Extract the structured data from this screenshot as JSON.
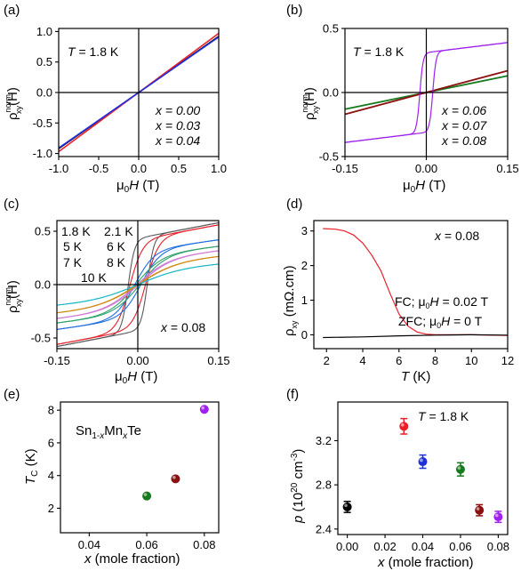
{
  "panel_labels": [
    "(a)",
    "(b)",
    "(c)",
    "(d)",
    "(e)",
    "(f)"
  ],
  "colors": {
    "x000": "#000000",
    "x003": "#e8202a",
    "x004": "#1f2fe0",
    "x006": "#167a1e",
    "x007": "#8b0f0f",
    "x008": "#a020f0",
    "k18": "#5a5a5a",
    "k21": "#e8202a",
    "k5": "#1f6fe0",
    "k6": "#2ea36b",
    "k7": "#d07ad8",
    "k8": "#d08a12",
    "k10": "#1ab8c8"
  },
  "chart_data": [
    {
      "panel": "a",
      "type": "line",
      "xlabel": "μ0H (T)",
      "ylabel": "ρxy norm(H)",
      "annotation": "T = 1.8 K",
      "xlim": [
        -1.0,
        1.0
      ],
      "ylim": [
        -1.05,
        1.05
      ],
      "xticks": [
        -1.0,
        -0.5,
        0.0,
        0.5,
        1.0
      ],
      "xtick_labels": [
        "-1.0",
        "-0.5",
        "0.0",
        "0.5",
        "1.0"
      ],
      "yticks": [
        -1.0,
        -0.5,
        0.0,
        0.5,
        1.0
      ],
      "ytick_labels": [
        "-1.0",
        "-0.5",
        "0.0",
        "0.5",
        "1.0"
      ],
      "series": [
        {
          "name": "x = 0.00",
          "color": "#000000",
          "x": [
            -1.0,
            1.0
          ],
          "y": [
            -0.92,
            0.92
          ]
        },
        {
          "name": "x = 0.03",
          "color": "#e8202a",
          "x": [
            -1.0,
            1.0
          ],
          "y": [
            -0.97,
            0.97
          ]
        },
        {
          "name": "x = 0.04",
          "color": "#1f2fe0",
          "x": [
            -1.0,
            1.0
          ],
          "y": [
            -0.91,
            0.91
          ]
        }
      ]
    },
    {
      "panel": "b",
      "type": "line",
      "xlabel": "μ0H (T)",
      "ylabel": "ρxy norm(H)",
      "annotation": "T = 1.8 K",
      "xlim": [
        -0.15,
        0.15
      ],
      "ylim": [
        -0.5,
        0.5
      ],
      "xticks": [
        -0.15,
        0.0,
        0.15
      ],
      "xtick_labels": [
        "-0.15",
        "0.00",
        "0.15"
      ],
      "yticks": [
        -0.5,
        0.0,
        0.5
      ],
      "ytick_labels": [
        "-0.5",
        "0.0",
        "0.5"
      ],
      "series": [
        {
          "name": "x = 0.06",
          "color": "#167a1e",
          "x": [
            -0.15,
            0.15
          ],
          "y": [
            -0.13,
            0.13
          ]
        },
        {
          "name": "x = 0.07",
          "color": "#8b0f0f",
          "x": [
            -0.15,
            0.15
          ],
          "y": [
            -0.17,
            0.17
          ]
        },
        {
          "name": "x = 0.08",
          "color": "#a020f0",
          "x": [
            -0.15,
            -0.02,
            0.02,
            0.15
          ],
          "y": [
            -0.39,
            -0.3,
            0.3,
            0.39
          ]
        }
      ]
    },
    {
      "panel": "c",
      "type": "line",
      "xlabel": "μ0H (T)",
      "ylabel": "ρxy norm(H)",
      "annotation": "x = 0.08",
      "xlim": [
        -0.15,
        0.15
      ],
      "ylim": [
        -0.6,
        0.6
      ],
      "xticks": [
        -0.15,
        0.0,
        0.15
      ],
      "xtick_labels": [
        "-0.15",
        "0.00",
        "0.15"
      ],
      "yticks": [
        -0.5,
        0.0,
        0.5
      ],
      "ytick_labels": [
        "-0.5",
        "0.0",
        "0.5"
      ],
      "series": [
        {
          "name": "1.8 K",
          "color": "#5a5a5a",
          "sat": 0.58,
          "hc": 0.018
        },
        {
          "name": "2.1 K",
          "color": "#e8202a",
          "sat": 0.56,
          "hc": 0.015
        },
        {
          "name": "5 K",
          "color": "#1f6fe0",
          "sat": 0.42,
          "hc": 0.006
        },
        {
          "name": "6 K",
          "color": "#2ea36b",
          "sat": 0.36,
          "hc": 0.004
        },
        {
          "name": "7 K",
          "color": "#d07ad8",
          "sat": 0.32,
          "hc": 0.002
        },
        {
          "name": "8 K",
          "color": "#d08a12",
          "sat": 0.27,
          "hc": 0.001
        },
        {
          "name": "10 K",
          "color": "#1ab8c8",
          "sat": 0.2,
          "hc": 0.0
        }
      ]
    },
    {
      "panel": "d",
      "type": "line",
      "xlabel": "T (K)",
      "ylabel": "ρxy (mΩ.cm)",
      "annotation": "x = 0.08",
      "xlim": [
        1.3,
        12
      ],
      "ylim": [
        -0.4,
        3.3
      ],
      "xticks": [
        2,
        4,
        6,
        8,
        10,
        12
      ],
      "xtick_labels": [
        "2",
        "4",
        "6",
        "8",
        "10",
        "12"
      ],
      "yticks": [
        0,
        1,
        2,
        3
      ],
      "ytick_labels": [
        "0",
        "1",
        "2",
        "3"
      ],
      "series": [
        {
          "name": "FC; μ0H = 0.02 T",
          "color": "#e8202a",
          "x": [
            1.8,
            2.5,
            3.0,
            3.5,
            4.0,
            4.5,
            5.0,
            5.5,
            6.0,
            6.5,
            7.0,
            7.5,
            8.0,
            9.0,
            10.0,
            11.0,
            12.0
          ],
          "y": [
            3.07,
            3.05,
            3.0,
            2.88,
            2.65,
            2.3,
            1.85,
            1.2,
            0.6,
            0.25,
            0.08,
            0.02,
            0.0,
            0.0,
            0.0,
            -0.01,
            -0.02
          ]
        },
        {
          "name": "ZFC; μ0H = 0 T",
          "color": "#000000",
          "x": [
            1.8,
            4.0,
            6.0,
            8.0,
            10.0,
            12.0
          ],
          "y": [
            -0.08,
            -0.06,
            -0.03,
            -0.01,
            0.0,
            -0.01
          ]
        }
      ]
    },
    {
      "panel": "e",
      "type": "scatter",
      "xlabel": "x (mole fraction)",
      "ylabel": "TC (K)",
      "annotation": "Sn1-xMnxTe",
      "xlim": [
        0.03,
        0.085
      ],
      "ylim": [
        0.5,
        8.5
      ],
      "xticks": [
        0.04,
        0.06,
        0.08
      ],
      "xtick_labels": [
        "0.04",
        "0.06",
        "0.08"
      ],
      "yticks": [
        2,
        4,
        6,
        8
      ],
      "ytick_labels": [
        "2",
        "4",
        "6",
        "8"
      ],
      "points": [
        {
          "x": 0.06,
          "y": 2.75,
          "color": "#167a1e"
        },
        {
          "x": 0.07,
          "y": 3.8,
          "color": "#8b0f0f"
        },
        {
          "x": 0.08,
          "y": 8.05,
          "color": "#a020f0"
        }
      ]
    },
    {
      "panel": "f",
      "type": "scatter",
      "xlabel": "x (mole fraction)",
      "ylabel": "p (10^20 cm^-3)",
      "annotation": "T = 1.8 K",
      "xlim": [
        -0.005,
        0.085
      ],
      "ylim": [
        2.35,
        3.55
      ],
      "xticks": [
        0.0,
        0.02,
        0.04,
        0.06,
        0.08
      ],
      "xtick_labels": [
        "0.00",
        "0.02",
        "0.04",
        "0.06",
        "0.08"
      ],
      "yticks": [
        2.4,
        2.8,
        3.2
      ],
      "ytick_labels": [
        "2.4",
        "2.8",
        "3.2"
      ],
      "points": [
        {
          "x": 0.0,
          "y": 2.6,
          "err": 0.05,
          "color": "#000000"
        },
        {
          "x": 0.03,
          "y": 3.33,
          "err": 0.07,
          "color": "#e8202a"
        },
        {
          "x": 0.04,
          "y": 3.01,
          "err": 0.06,
          "color": "#1f2fe0"
        },
        {
          "x": 0.06,
          "y": 2.94,
          "err": 0.06,
          "color": "#167a1e"
        },
        {
          "x": 0.07,
          "y": 2.57,
          "err": 0.05,
          "color": "#8b0f0f"
        },
        {
          "x": 0.08,
          "y": 2.51,
          "err": 0.05,
          "color": "#a020f0"
        }
      ]
    }
  ]
}
